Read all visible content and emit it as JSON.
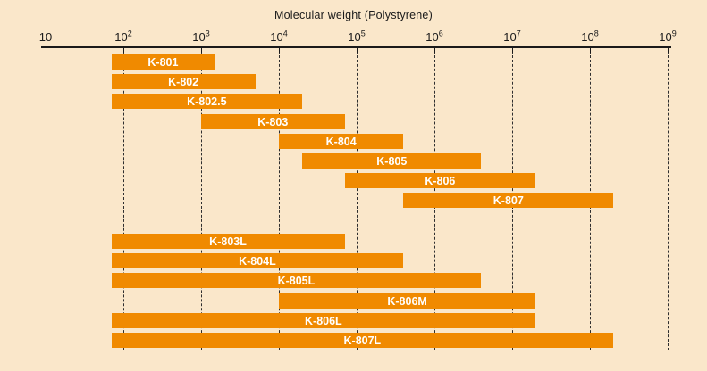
{
  "chart_data": {
    "type": "bar",
    "subtype": "horizontal-log-range-bars",
    "title": "Molecular weight (Polystyrene)",
    "x_axis": {
      "scale": "log10",
      "min": 10,
      "max": 1000000000,
      "ticks": [
        {
          "exp": 1,
          "label": "10"
        },
        {
          "exp": 2,
          "label": "10²"
        },
        {
          "exp": 3,
          "label": "10³"
        },
        {
          "exp": 4,
          "label": "10⁴"
        },
        {
          "exp": 5,
          "label": "10⁵"
        },
        {
          "exp": 6,
          "label": "10⁶"
        },
        {
          "exp": 7,
          "label": "10⁷"
        },
        {
          "exp": 8,
          "label": "10⁸"
        },
        {
          "exp": 9,
          "label": "10⁹"
        }
      ]
    },
    "grid": {
      "style": "dashed-vertical",
      "on": true,
      "color": "#2e2e2e"
    },
    "legend_position": "none",
    "colors": {
      "background": "#FAE7CA",
      "bar": "#F08A00",
      "bar_label": "#FFFFFF",
      "axis": "#1a1a1a"
    },
    "series": [
      {
        "name": "K-801",
        "min": 70,
        "max": 1500,
        "group": 0
      },
      {
        "name": "K-802",
        "min": 70,
        "max": 5000,
        "group": 0
      },
      {
        "name": "K-802.5",
        "min": 70,
        "max": 20000,
        "group": 0
      },
      {
        "name": "K-803",
        "min": 1000,
        "max": 70000,
        "group": 0
      },
      {
        "name": "K-804",
        "min": 10000,
        "max": 400000,
        "group": 0
      },
      {
        "name": "K-805",
        "min": 20000,
        "max": 4000000,
        "group": 0
      },
      {
        "name": "K-806",
        "min": 70000,
        "max": 20000000,
        "group": 0
      },
      {
        "name": "K-807",
        "min": 400000,
        "max": 200000000,
        "group": 0
      },
      {
        "name": "K-803L",
        "min": 70,
        "max": 70000,
        "group": 1
      },
      {
        "name": "K-804L",
        "min": 70,
        "max": 400000,
        "group": 1
      },
      {
        "name": "K-805L",
        "min": 70,
        "max": 4000000,
        "group": 1
      },
      {
        "name": "K-806M",
        "min": 10000,
        "max": 20000000,
        "group": 1
      },
      {
        "name": "K-806L",
        "min": 70,
        "max": 20000000,
        "group": 1
      },
      {
        "name": "K-807L",
        "min": 70,
        "max": 200000000,
        "group": 1
      }
    ]
  }
}
